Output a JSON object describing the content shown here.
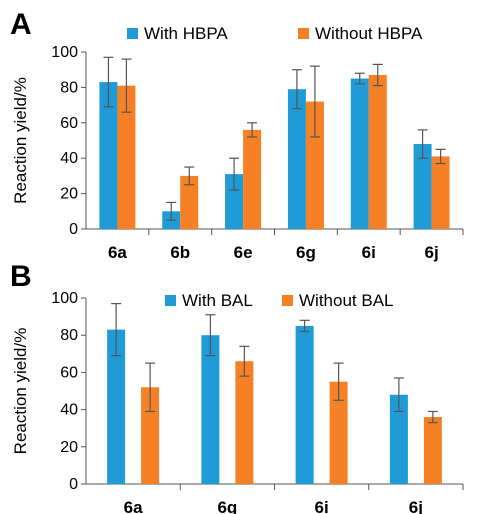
{
  "chart_data": [
    {
      "panel": "A",
      "type": "bar",
      "ylabel": "Reaction yield/%",
      "ylim": [
        0,
        100
      ],
      "yticks": [
        0,
        20,
        40,
        60,
        80,
        100
      ],
      "categories": [
        "6a",
        "6b",
        "6e",
        "6g",
        "6i",
        "6j"
      ],
      "series": [
        {
          "name": "With HBPA",
          "color": "#1f9bd7",
          "values": [
            83,
            10,
            31,
            79,
            85,
            48
          ],
          "errors": [
            14,
            5,
            9,
            11,
            3,
            8
          ]
        },
        {
          "name": "Without HBPA",
          "color": "#f58025",
          "values": [
            81,
            30,
            56,
            72,
            87,
            41
          ],
          "errors": [
            15,
            5,
            4,
            20,
            6,
            4
          ]
        }
      ],
      "legend": "top",
      "grid": false
    },
    {
      "panel": "B",
      "type": "bar",
      "ylabel": "Reaction yield/%",
      "ylim": [
        0,
        100
      ],
      "yticks": [
        0,
        20,
        40,
        60,
        80,
        100
      ],
      "categories": [
        "6a",
        "6g",
        "6i",
        "6j"
      ],
      "series": [
        {
          "name": "With BAL",
          "color": "#1f9bd7",
          "values": [
            83,
            80,
            85,
            48
          ],
          "errors": [
            14,
            11,
            3,
            9
          ]
        },
        {
          "name": "Without BAL",
          "color": "#f58025",
          "values": [
            52,
            66,
            55,
            36
          ],
          "errors": [
            13,
            8,
            10,
            3
          ]
        }
      ],
      "legend": "top",
      "grid": false
    }
  ]
}
